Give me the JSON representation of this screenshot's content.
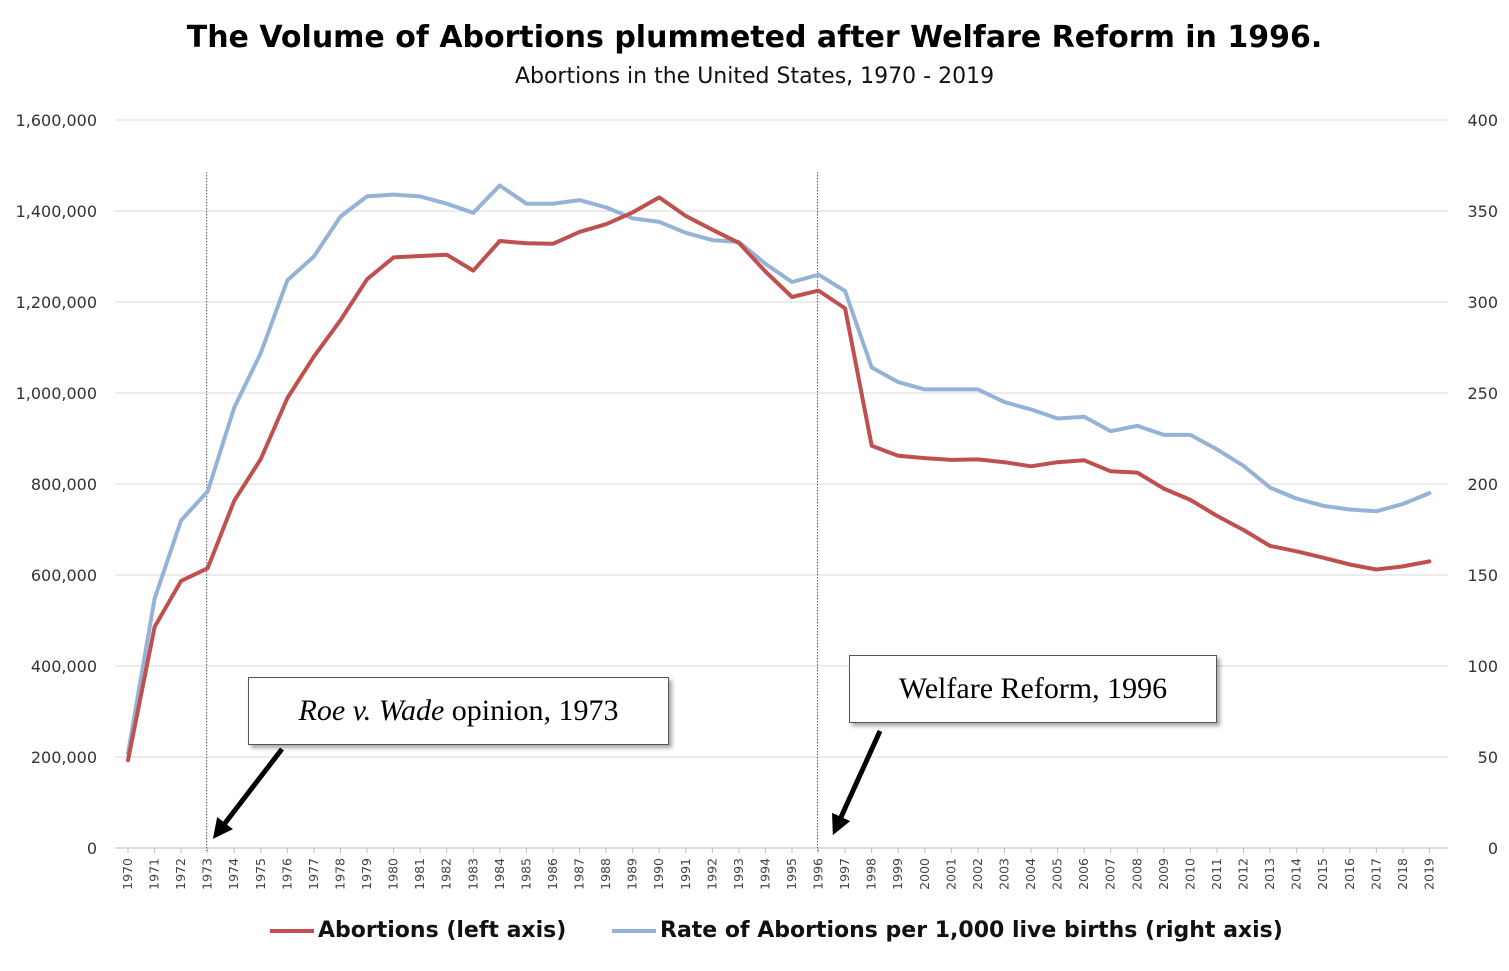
{
  "chart_data": {
    "type": "line",
    "title": "The Volume of Abortions plummeted after Welfare Reform in 1996.",
    "subtitle": "Abortions in the United States, 1970 - 2019",
    "x": [
      1970,
      1971,
      1972,
      1973,
      1974,
      1975,
      1976,
      1977,
      1978,
      1979,
      1980,
      1981,
      1982,
      1983,
      1984,
      1985,
      1986,
      1987,
      1988,
      1989,
      1990,
      1991,
      1992,
      1993,
      1994,
      1995,
      1996,
      1997,
      1998,
      1999,
      2000,
      2001,
      2002,
      2003,
      2004,
      2005,
      2006,
      2007,
      2008,
      2009,
      2010,
      2011,
      2012,
      2013,
      2014,
      2015,
      2016,
      2017,
      2018,
      2019
    ],
    "left_axis": {
      "ylim": [
        0,
        1600000
      ],
      "ticks": [
        0,
        200000,
        400000,
        600000,
        800000,
        1000000,
        1200000,
        1400000,
        1600000
      ],
      "tick_labels": [
        "0",
        "200,000",
        "400,000",
        "600,000",
        "800,000",
        "1,000,000",
        "1,200,000",
        "1,400,000",
        "1,600,000"
      ]
    },
    "right_axis": {
      "ylim": [
        0,
        400
      ],
      "ticks": [
        0,
        50,
        100,
        150,
        200,
        250,
        300,
        350,
        400
      ],
      "tick_labels": [
        "0",
        "50",
        "100",
        "150",
        "200",
        "250",
        "300",
        "350",
        "400"
      ]
    },
    "grid": true,
    "legend_position": "bottom",
    "series": [
      {
        "name": "Abortions (left axis)",
        "axis": "left",
        "color": "#C0504D",
        "values": [
          193000,
          486000,
          587000,
          615000,
          763000,
          855000,
          989000,
          1080000,
          1160000,
          1250000,
          1298000,
          1301000,
          1304000,
          1269000,
          1334000,
          1329000,
          1328000,
          1354000,
          1371000,
          1397000,
          1430000,
          1389000,
          1359000,
          1330000,
          1267000,
          1211000,
          1225000,
          1186000,
          884000,
          862000,
          857000,
          853000,
          854000,
          848000,
          839000,
          848000,
          852000,
          828000,
          825000,
          790000,
          765000,
          730000,
          699000,
          664000,
          652000,
          638000,
          623000,
          612000,
          619000,
          630000
        ]
      },
      {
        "name": "Rate of Abortions per 1,000 live births (right axis)",
        "axis": "right",
        "color": "#95B3D7",
        "values": [
          52,
          137,
          180,
          196,
          242,
          272,
          312,
          325,
          347,
          358,
          359,
          358,
          354,
          349,
          364,
          354,
          354,
          356,
          352,
          346,
          344,
          338,
          334,
          333,
          321,
          311,
          315,
          306,
          264,
          256,
          252,
          252,
          252,
          245,
          241,
          236,
          237,
          229,
          232,
          227,
          227,
          219,
          210,
          198,
          192,
          188,
          186,
          185,
          189,
          195
        ]
      }
    ],
    "annotations": [
      {
        "x": 1973,
        "label_italic": "Roe v. Wade",
        "label_rest": "opinion, 1973"
      },
      {
        "x": 1996,
        "label": "Welfare Reform, 1996"
      }
    ]
  }
}
